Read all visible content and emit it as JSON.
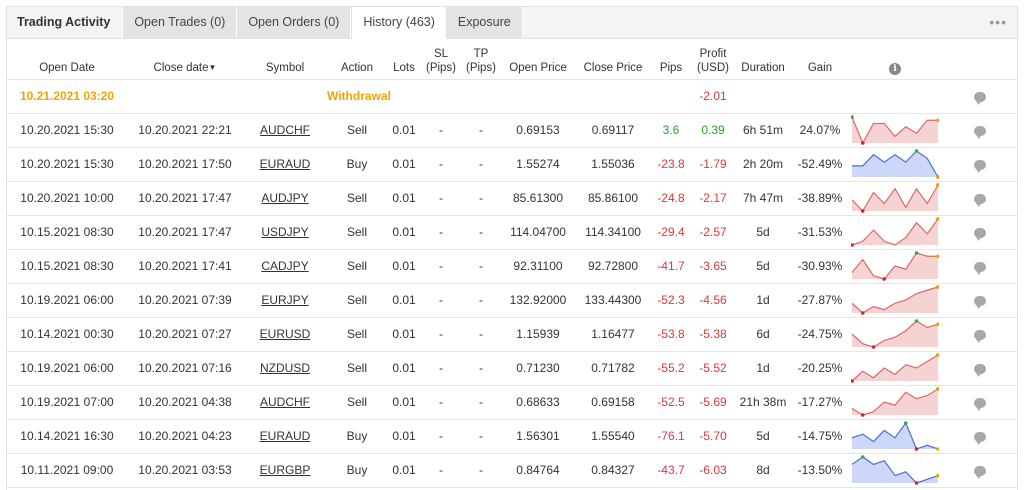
{
  "tabs": [
    {
      "label": "Trading Activity"
    },
    {
      "label": "Open Trades (0)"
    },
    {
      "label": "Open Orders (0)"
    },
    {
      "label": "History (463)"
    },
    {
      "label": "Exposure"
    }
  ],
  "more_label": "•••",
  "headers": {
    "open_date": "Open Date",
    "close_date": "Close date",
    "sort_caret": "▼",
    "symbol": "Symbol",
    "action": "Action",
    "lots": "Lots",
    "sl": "SL",
    "sl_unit": "(Pips)",
    "tp": "TP",
    "tp_unit": "(Pips)",
    "open_price": "Open Price",
    "close_price": "Close Price",
    "pips": "Pips",
    "profit": "Profit",
    "profit_unit": "(USD)",
    "duration": "Duration",
    "gain": "Gain",
    "info_icon": "i"
  },
  "withdrawal": {
    "open_date": "10.21.2021 03:20",
    "action": "Withdrawal",
    "profit": "-2.01"
  },
  "rows": [
    {
      "open_date": "10.20.2021 15:30",
      "close_date": "10.20.2021 22:21",
      "symbol": "AUDCHF",
      "action": "Sell",
      "lots": "0.01",
      "sl": "-",
      "tp": "-",
      "open_price": "0.69153",
      "close_price": "0.69117",
      "pips": "3.6",
      "profit": "0.39",
      "duration": "6h 51m",
      "gain": "24.07%",
      "spark": [
        10,
        2,
        8,
        8,
        4,
        7,
        5,
        9,
        9
      ],
      "fill": "red"
    },
    {
      "open_date": "10.20.2021 15:30",
      "close_date": "10.20.2021 17:50",
      "symbol": "EURAUD",
      "action": "Buy",
      "lots": "0.01",
      "sl": "-",
      "tp": "-",
      "open_price": "1.55274",
      "close_price": "1.55036",
      "pips": "-23.8",
      "profit": "-1.79",
      "duration": "2h 20m",
      "gain": "-52.49%",
      "spark": [
        5,
        5,
        8,
        6,
        8,
        6,
        9,
        7,
        2
      ],
      "fill": "blue"
    },
    {
      "open_date": "10.20.2021 10:00",
      "close_date": "10.20.2021 17:47",
      "symbol": "AUDJPY",
      "action": "Sell",
      "lots": "0.01",
      "sl": "-",
      "tp": "-",
      "open_price": "85.61300",
      "close_price": "85.86100",
      "pips": "-24.8",
      "profit": "-2.17",
      "duration": "7h 47m",
      "gain": "-38.89%",
      "spark": [
        6,
        3,
        8,
        5,
        9,
        4,
        9,
        5,
        10
      ],
      "fill": "red"
    },
    {
      "open_date": "10.15.2021 08:30",
      "close_date": "10.20.2021 17:47",
      "symbol": "USDJPY",
      "action": "Sell",
      "lots": "0.01",
      "sl": "-",
      "tp": "-",
      "open_price": "114.04700",
      "close_price": "114.34100",
      "pips": "-29.4",
      "profit": "-2.57",
      "duration": "5d",
      "gain": "-31.53%",
      "spark": [
        3,
        4,
        7,
        4,
        3,
        5,
        9,
        6,
        10
      ],
      "fill": "red"
    },
    {
      "open_date": "10.15.2021 08:30",
      "close_date": "10.20.2021 17:41",
      "symbol": "CADJPY",
      "action": "Sell",
      "lots": "0.01",
      "sl": "-",
      "tp": "-",
      "open_price": "92.31100",
      "close_price": "92.72800",
      "pips": "-41.7",
      "profit": "-3.65",
      "duration": "5d",
      "gain": "-30.93%",
      "spark": [
        4,
        8,
        3,
        2,
        6,
        5,
        10,
        9,
        9
      ],
      "fill": "red"
    },
    {
      "open_date": "10.19.2021 06:00",
      "close_date": "10.20.2021 07:39",
      "symbol": "EURJPY",
      "action": "Sell",
      "lots": "0.01",
      "sl": "-",
      "tp": "-",
      "open_price": "132.92000",
      "close_price": "133.44300",
      "pips": "-52.3",
      "profit": "-4.56",
      "duration": "1d",
      "gain": "-27.87%",
      "spark": [
        5,
        2,
        4,
        3,
        5,
        6,
        8,
        9,
        10
      ],
      "fill": "red"
    },
    {
      "open_date": "10.14.2021 00:30",
      "close_date": "10.20.2021 07:27",
      "symbol": "EURUSD",
      "action": "Sell",
      "lots": "0.01",
      "sl": "-",
      "tp": "-",
      "open_price": "1.15939",
      "close_price": "1.16477",
      "pips": "-53.8",
      "profit": "-5.38",
      "duration": "6d",
      "gain": "-24.75%",
      "spark": [
        6,
        3,
        2,
        4,
        5,
        7,
        10,
        8,
        9
      ],
      "fill": "red"
    },
    {
      "open_date": "10.19.2021 06:00",
      "close_date": "10.20.2021 07:16",
      "symbol": "NZDUSD",
      "action": "Sell",
      "lots": "0.01",
      "sl": "-",
      "tp": "-",
      "open_price": "0.71230",
      "close_price": "0.71782",
      "pips": "-55.2",
      "profit": "-5.52",
      "duration": "1d",
      "gain": "-20.25%",
      "spark": [
        2,
        5,
        3,
        6,
        4,
        7,
        6,
        8,
        10
      ],
      "fill": "red"
    },
    {
      "open_date": "10.19.2021 07:00",
      "close_date": "10.20.2021 04:38",
      "symbol": "AUDCHF",
      "action": "Sell",
      "lots": "0.01",
      "sl": "-",
      "tp": "-",
      "open_price": "0.68633",
      "close_price": "0.69158",
      "pips": "-52.5",
      "profit": "-5.69",
      "duration": "21h 38m",
      "gain": "-17.27%",
      "spark": [
        4,
        2,
        3,
        6,
        5,
        9,
        7,
        8,
        10
      ],
      "fill": "red"
    },
    {
      "open_date": "10.14.2021 16:30",
      "close_date": "10.20.2021 04:23",
      "symbol": "EURAUD",
      "action": "Buy",
      "lots": "0.01",
      "sl": "-",
      "tp": "-",
      "open_price": "1.56301",
      "close_price": "1.55540",
      "pips": "-76.1",
      "profit": "-5.70",
      "duration": "5d",
      "gain": "-14.75%",
      "spark": [
        6,
        7,
        5,
        8,
        6,
        10,
        3,
        4,
        3
      ],
      "fill": "blue"
    },
    {
      "open_date": "10.11.2021 09:00",
      "close_date": "10.20.2021 03:53",
      "symbol": "EURGBP",
      "action": "Buy",
      "lots": "0.01",
      "sl": "-",
      "tp": "-",
      "open_price": "0.84764",
      "close_price": "0.84327",
      "pips": "-43.7",
      "profit": "-6.03",
      "duration": "8d",
      "gain": "-13.50%",
      "spark": [
        7,
        9,
        7,
        8,
        4,
        5,
        2,
        3,
        4
      ],
      "fill": "blue"
    }
  ],
  "colors": {
    "red_line": "#e06666",
    "red_fill": "#f6d3d3",
    "blue_line": "#4a6fdc",
    "blue_fill": "#cdd7f7",
    "marker_high": "#22b14c",
    "marker_low": "#e02020",
    "marker_end": "#f0a000",
    "negative": "#d9393b",
    "positive": "#2aa02a",
    "withdrawal": "#f0a400"
  }
}
